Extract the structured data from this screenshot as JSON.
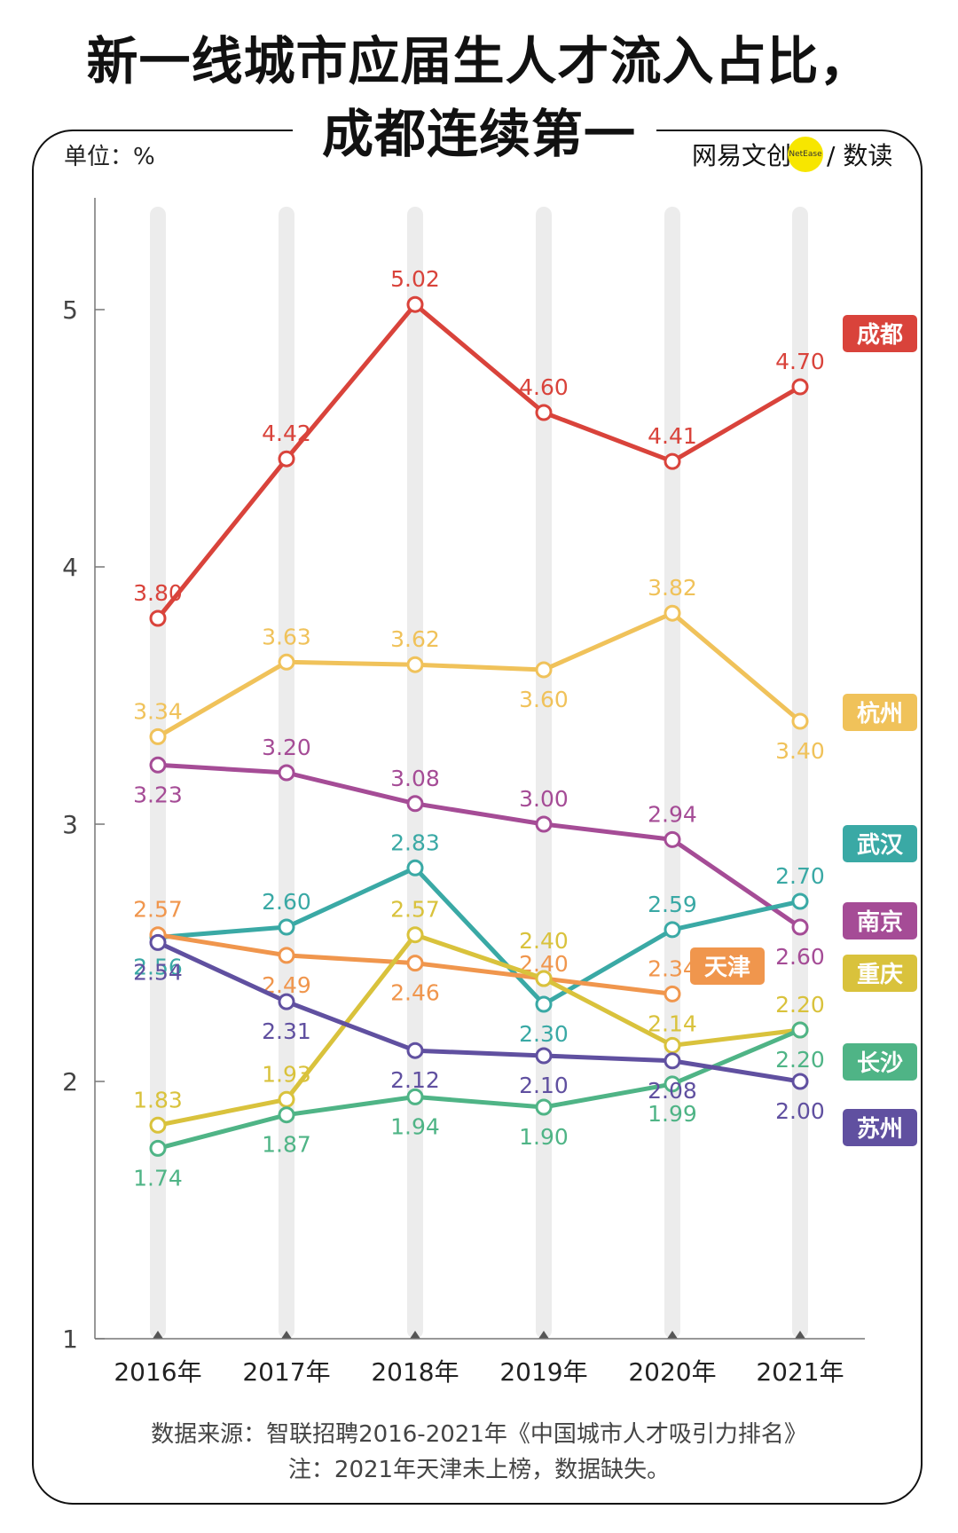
{
  "title": [
    "新一线城市应届生人才流入占比，",
    "成都连续第一"
  ],
  "unit": "单位：%",
  "brand": {
    "name": "网易文创",
    "dot": "NetEase",
    "suffix": "/ 数读"
  },
  "source": "数据来源：智联招聘2016-2021年《中国城市人才吸引力排名》",
  "note": "注：2021年天津未上榜，数据缺失。",
  "chart_data": {
    "type": "line",
    "categories": [
      "2016年",
      "2017年",
      "2018年",
      "2019年",
      "2020年",
      "2021年"
    ],
    "ylim": [
      1,
      5.4
    ],
    "yticks": [
      1,
      2,
      3,
      4,
      5
    ],
    "grid": false,
    "legend": "right (labels at line ends)",
    "series": [
      {
        "name": "成都",
        "color": "#d9433b",
        "values": [
          3.8,
          4.42,
          5.02,
          4.6,
          4.41,
          4.7
        ]
      },
      {
        "name": "杭州",
        "color": "#f0c25a",
        "values": [
          3.34,
          3.63,
          3.62,
          3.6,
          3.82,
          3.4
        ]
      },
      {
        "name": "南京",
        "color": "#a54c96",
        "values": [
          3.23,
          3.2,
          3.08,
          3.0,
          2.94,
          2.6
        ]
      },
      {
        "name": "武汉",
        "color": "#3aa9a5",
        "values": [
          2.56,
          2.6,
          2.83,
          2.3,
          2.59,
          2.7
        ]
      },
      {
        "name": "天津",
        "color": "#f0964d",
        "values": [
          2.57,
          2.49,
          2.46,
          2.4,
          2.34,
          null
        ]
      },
      {
        "name": "重庆",
        "color": "#d9c23c",
        "values": [
          1.83,
          1.93,
          2.57,
          2.4,
          2.14,
          2.2
        ]
      },
      {
        "name": "长沙",
        "color": "#4fb486",
        "values": [
          1.74,
          1.87,
          1.94,
          1.9,
          1.99,
          2.2
        ]
      },
      {
        "name": "苏州",
        "color": "#6050a0",
        "values": [
          2.54,
          2.31,
          2.12,
          2.1,
          2.08,
          2.0
        ]
      }
    ]
  }
}
